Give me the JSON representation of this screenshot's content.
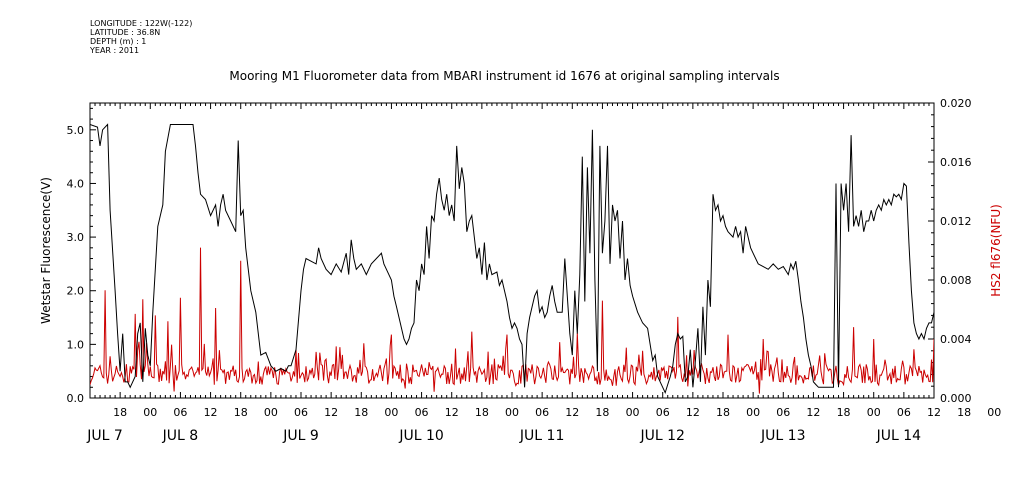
{
  "metadata": {
    "longitude": "LONGITUDE : 122W(-122)",
    "latitude": "LATITUDE : 36.8N",
    "depth": "DEPTH (m) : 1",
    "year": "YEAR : 2011"
  },
  "chart_data": {
    "type": "line",
    "title": "Mooring M1 Fluorometer data from MBARI instrument id 1676 at original sampling intervals",
    "ylabel": "Wetstar Fluorescence(V)",
    "y2label": "HS2 fl676(NFU)",
    "ylim": [
      0,
      5.5
    ],
    "y2lim": [
      0,
      0.02
    ],
    "yticks": [
      "0.0",
      "1.0",
      "2.0",
      "3.0",
      "4.0",
      "5.0"
    ],
    "y2ticks": [
      "0.000",
      "0.004",
      "0.008",
      "0.012",
      "0.016",
      "0.020"
    ],
    "xlim_hours": [
      0,
      168
    ],
    "hour_tick_labels": [
      "18",
      "00",
      "06",
      "12",
      "18",
      "00",
      "06",
      "12",
      "18",
      "00",
      "06",
      "12",
      "18",
      "00",
      "06",
      "12",
      "18",
      "00",
      "06",
      "12",
      "18",
      "00",
      "06",
      "12",
      "18",
      "00",
      "06",
      "12",
      "18",
      "00",
      "06",
      "12"
    ],
    "day_labels": [
      "JUL  7",
      "JUL  8",
      "JUL  9",
      "JUL 10",
      "JUL 11",
      "JUL 12",
      "JUL 13",
      "JUL 14"
    ],
    "series": [
      {
        "name": "Wetstar Fluorescence(V)",
        "axis": "left",
        "color": "#000000",
        "points": [
          [
            0,
            5.1
          ],
          [
            1.5,
            5.05
          ],
          [
            2,
            4.7
          ],
          [
            2.5,
            5.0
          ],
          [
            3.5,
            5.1
          ],
          [
            4,
            3.5
          ],
          [
            5,
            2.0
          ],
          [
            5.5,
            1.2
          ],
          [
            6,
            0.5
          ],
          [
            6.5,
            1.2
          ],
          [
            7,
            0.3
          ],
          [
            7.5,
            0.3
          ],
          [
            8,
            0.2
          ],
          [
            9,
            0.4
          ],
          [
            9.5,
            1.2
          ],
          [
            10,
            1.4
          ],
          [
            10.5,
            0.3
          ],
          [
            11,
            1.3
          ],
          [
            11.5,
            0.8
          ],
          [
            12,
            0.6
          ],
          [
            12.5,
            1.6
          ],
          [
            13.5,
            3.2
          ],
          [
            14.5,
            3.6
          ],
          [
            15,
            4.6
          ],
          [
            16,
            5.1
          ],
          [
            20,
            5.1
          ],
          [
            20.5,
            5.1
          ],
          [
            21,
            4.7
          ],
          [
            21.5,
            4.2
          ],
          [
            22,
            3.8
          ],
          [
            23,
            3.7
          ],
          [
            24,
            3.4
          ],
          [
            25,
            3.6
          ],
          [
            25.5,
            3.2
          ],
          [
            26,
            3.6
          ],
          [
            26.5,
            3.8
          ],
          [
            27,
            3.5
          ],
          [
            28,
            3.3
          ],
          [
            29,
            3.1
          ],
          [
            29.5,
            4.8
          ],
          [
            30,
            3.4
          ],
          [
            30.5,
            3.5
          ],
          [
            31,
            2.8
          ],
          [
            32,
            2.0
          ],
          [
            33,
            1.6
          ],
          [
            34,
            0.8
          ],
          [
            35,
            0.85
          ],
          [
            36,
            0.6
          ],
          [
            37,
            0.5
          ],
          [
            38,
            0.55
          ],
          [
            39,
            0.5
          ],
          [
            39.5,
            0.6
          ],
          [
            40,
            0.6
          ],
          [
            41,
            0.9
          ],
          [
            42,
            2.0
          ],
          [
            42.5,
            2.4
          ],
          [
            43,
            2.6
          ],
          [
            44,
            2.55
          ],
          [
            45,
            2.5
          ],
          [
            45.5,
            2.8
          ],
          [
            46,
            2.6
          ],
          [
            47,
            2.4
          ],
          [
            48,
            2.3
          ],
          [
            49,
            2.5
          ],
          [
            50,
            2.35
          ],
          [
            51,
            2.7
          ],
          [
            51.5,
            2.3
          ],
          [
            52,
            2.95
          ],
          [
            52.5,
            2.6
          ],
          [
            53,
            2.4
          ],
          [
            54,
            2.5
          ],
          [
            55,
            2.3
          ],
          [
            56,
            2.5
          ],
          [
            57,
            2.6
          ],
          [
            58,
            2.7
          ],
          [
            58.5,
            2.5
          ],
          [
            59,
            2.4
          ],
          [
            60,
            2.2
          ],
          [
            60.5,
            1.9
          ],
          [
            61,
            1.7
          ],
          [
            61.5,
            1.5
          ],
          [
            62,
            1.3
          ],
          [
            62.5,
            1.1
          ],
          [
            63,
            1.0
          ],
          [
            63.5,
            1.1
          ],
          [
            64,
            1.3
          ],
          [
            64.5,
            1.4
          ],
          [
            65,
            2.2
          ],
          [
            65.5,
            2.0
          ],
          [
            66,
            2.5
          ],
          [
            66.5,
            2.3
          ],
          [
            67,
            3.2
          ],
          [
            67.5,
            2.6
          ],
          [
            68,
            3.4
          ],
          [
            68.5,
            3.3
          ],
          [
            69,
            3.8
          ],
          [
            69.5,
            4.1
          ],
          [
            70,
            3.7
          ],
          [
            70.5,
            3.5
          ],
          [
            71,
            3.8
          ],
          [
            71.5,
            3.4
          ],
          [
            72,
            3.6
          ],
          [
            72.5,
            3.3
          ],
          [
            73,
            4.7
          ],
          [
            73.5,
            3.9
          ],
          [
            74,
            4.3
          ],
          [
            74.5,
            4.0
          ],
          [
            75,
            3.1
          ],
          [
            75.5,
            3.3
          ],
          [
            76,
            3.4
          ],
          [
            76.5,
            3.0
          ],
          [
            77,
            2.6
          ],
          [
            77.5,
            2.8
          ],
          [
            78,
            2.3
          ],
          [
            78.5,
            2.9
          ],
          [
            79,
            2.2
          ],
          [
            79.5,
            2.5
          ],
          [
            80,
            2.3
          ],
          [
            81,
            2.35
          ],
          [
            81.5,
            2.1
          ],
          [
            82,
            2.2
          ],
          [
            82.5,
            2.0
          ],
          [
            83,
            1.8
          ],
          [
            83.5,
            1.5
          ],
          [
            84,
            1.3
          ],
          [
            84.5,
            1.4
          ],
          [
            85,
            1.3
          ],
          [
            85.5,
            1.1
          ],
          [
            86,
            1.0
          ],
          [
            86.5,
            0.2
          ],
          [
            87,
            1.2
          ],
          [
            87.5,
            1.5
          ],
          [
            88,
            1.7
          ],
          [
            88.5,
            1.9
          ],
          [
            89,
            2.0
          ],
          [
            89.5,
            1.6
          ],
          [
            90,
            1.7
          ],
          [
            90.5,
            1.5
          ],
          [
            91,
            1.6
          ],
          [
            91.5,
            1.9
          ],
          [
            92,
            2.1
          ],
          [
            92.5,
            1.8
          ],
          [
            93,
            1.6
          ],
          [
            94,
            1.6
          ],
          [
            94.5,
            2.6
          ],
          [
            95,
            1.9
          ],
          [
            95.5,
            1.2
          ],
          [
            96,
            0.8
          ],
          [
            96.5,
            2.0
          ],
          [
            97,
            1.2
          ],
          [
            97.5,
            2.3
          ],
          [
            98,
            4.5
          ],
          [
            98.5,
            1.8
          ],
          [
            99,
            4.3
          ],
          [
            99.5,
            2.7
          ],
          [
            100,
            5.0
          ],
          [
            100.5,
            2.2
          ],
          [
            101,
            0.5
          ],
          [
            101.5,
            4.7
          ],
          [
            102,
            2.7
          ],
          [
            102.5,
            3.3
          ],
          [
            103,
            4.7
          ],
          [
            103.5,
            2.5
          ],
          [
            104,
            3.6
          ],
          [
            104.5,
            3.3
          ],
          [
            105,
            3.5
          ],
          [
            105.5,
            2.6
          ],
          [
            106,
            3.3
          ],
          [
            106.5,
            2.2
          ],
          [
            107,
            2.6
          ],
          [
            107.5,
            2.1
          ],
          [
            108,
            1.9
          ],
          [
            109,
            1.6
          ],
          [
            110,
            1.4
          ],
          [
            111,
            1.3
          ],
          [
            112,
            0.7
          ],
          [
            112.5,
            0.8
          ],
          [
            113,
            0.4
          ],
          [
            113.5,
            0.3
          ],
          [
            114,
            0.2
          ],
          [
            114.5,
            0.1
          ],
          [
            115,
            0.25
          ],
          [
            115.5,
            0.4
          ],
          [
            116,
            0.6
          ],
          [
            116.5,
            1.0
          ],
          [
            117,
            1.2
          ],
          [
            117.5,
            1.1
          ],
          [
            118,
            1.15
          ],
          [
            118.5,
            0.3
          ],
          [
            119,
            0.4
          ],
          [
            119.5,
            0.9
          ],
          [
            120,
            0.2
          ],
          [
            120.5,
            0.7
          ],
          [
            121,
            1.3
          ],
          [
            121.5,
            0.3
          ],
          [
            122,
            1.7
          ],
          [
            122.5,
            0.8
          ],
          [
            123,
            2.2
          ],
          [
            123.5,
            1.7
          ],
          [
            124,
            3.8
          ],
          [
            124.5,
            3.5
          ],
          [
            125,
            3.6
          ],
          [
            125.5,
            3.3
          ],
          [
            126,
            3.4
          ],
          [
            126.5,
            3.2
          ],
          [
            127,
            3.1
          ],
          [
            128,
            3.0
          ],
          [
            128.5,
            3.2
          ],
          [
            129,
            3.0
          ],
          [
            129.5,
            3.1
          ],
          [
            130,
            2.7
          ],
          [
            130.5,
            3.2
          ],
          [
            131,
            3.0
          ],
          [
            131.5,
            2.8
          ],
          [
            132,
            2.7
          ],
          [
            133,
            2.5
          ],
          [
            134,
            2.45
          ],
          [
            135,
            2.4
          ],
          [
            136,
            2.5
          ],
          [
            137,
            2.4
          ],
          [
            138,
            2.45
          ],
          [
            139,
            2.3
          ],
          [
            139.5,
            2.5
          ],
          [
            140,
            2.4
          ],
          [
            140.5,
            2.55
          ],
          [
            141,
            2.2
          ],
          [
            141.5,
            1.8
          ],
          [
            142,
            1.5
          ],
          [
            142.5,
            1.1
          ],
          [
            143,
            0.8
          ],
          [
            143.5,
            0.6
          ],
          [
            144,
            0.3
          ],
          [
            144.5,
            0.25
          ],
          [
            145,
            0.2
          ],
          [
            146,
            0.2
          ],
          [
            147,
            0.2
          ],
          [
            148,
            0.2
          ],
          [
            148.5,
            4.0
          ],
          [
            149,
            0.2
          ],
          [
            149.5,
            4.0
          ],
          [
            150,
            3.5
          ],
          [
            150.5,
            4.0
          ],
          [
            151,
            3.1
          ],
          [
            151.5,
            4.9
          ],
          [
            152,
            3.2
          ],
          [
            152.5,
            3.4
          ],
          [
            153,
            3.2
          ],
          [
            153.5,
            3.5
          ],
          [
            154,
            3.1
          ],
          [
            154.5,
            3.3
          ],
          [
            155,
            3.3
          ],
          [
            155.5,
            3.5
          ],
          [
            156,
            3.3
          ],
          [
            156.5,
            3.5
          ],
          [
            157,
            3.6
          ],
          [
            157.5,
            3.5
          ],
          [
            158,
            3.7
          ],
          [
            158.5,
            3.6
          ],
          [
            159,
            3.7
          ],
          [
            159.5,
            3.6
          ],
          [
            160,
            3.8
          ],
          [
            160.5,
            3.75
          ],
          [
            161,
            3.8
          ],
          [
            161.5,
            3.7
          ],
          [
            162,
            4.0
          ],
          [
            162.5,
            3.95
          ],
          [
            163,
            2.9
          ],
          [
            163.5,
            2.0
          ],
          [
            164,
            1.4
          ],
          [
            164.5,
            1.2
          ],
          [
            165,
            1.1
          ],
          [
            165.5,
            1.2
          ],
          [
            166,
            1.1
          ],
          [
            166.5,
            1.3
          ],
          [
            167,
            1.4
          ],
          [
            167.5,
            1.4
          ],
          [
            168,
            1.6
          ]
        ]
      },
      {
        "name": "HS2 fl676(NFU)",
        "axis": "right",
        "color": "#cc0000",
        "baseline": 0.0016
      }
    ]
  }
}
